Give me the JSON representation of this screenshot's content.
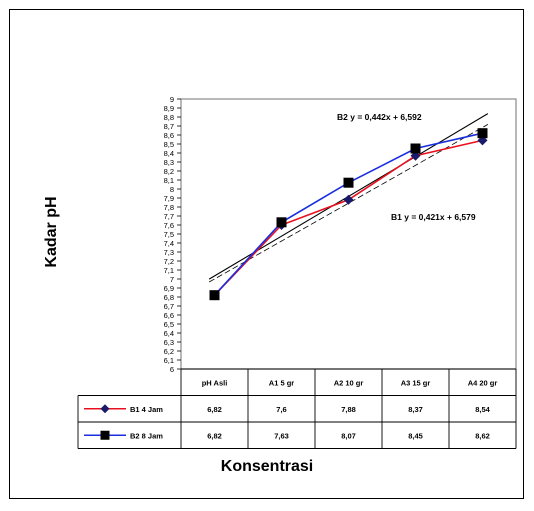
{
  "chart_data": {
    "type": "line",
    "xlabel": "Konsentrasi",
    "ylabel": "Kadar pH",
    "categories": [
      "pH Asli",
      "A1 5 gr",
      "A2 10 gr",
      "A3 15 gr",
      "A4 20 gr"
    ],
    "ylim": [
      6,
      9
    ],
    "y_step": 0.1,
    "grid": false,
    "legend": "data-table-left",
    "series": [
      {
        "name": "B1 4 Jam",
        "values": [
          6.82,
          7.6,
          7.88,
          8.37,
          8.54
        ],
        "value_labels": [
          "6,82",
          "7,6",
          "7,88",
          "8,37",
          "8,54"
        ],
        "color": "#e8101f",
        "marker": "diamond",
        "marker_color": "#1a1a6b"
      },
      {
        "name": "B2 8 Jam",
        "values": [
          6.82,
          7.63,
          8.07,
          8.45,
          8.62
        ],
        "value_labels": [
          "6,82",
          "7,63",
          "8,07",
          "8,45",
          "8,62"
        ],
        "color": "#1a2ee0",
        "marker": "square",
        "marker_color": "#000000"
      }
    ],
    "trendlines": [
      {
        "series": "B2 8 Jam",
        "equation": "B2  y = 0,442x + 6,592",
        "slope": 0.442,
        "intercept": 6.592,
        "style": "solid"
      },
      {
        "series": "B1 4 Jam",
        "equation": "B1  y = 0,421x + 6,579",
        "slope": 0.421,
        "intercept": 6.579,
        "style": "dashed"
      }
    ]
  }
}
